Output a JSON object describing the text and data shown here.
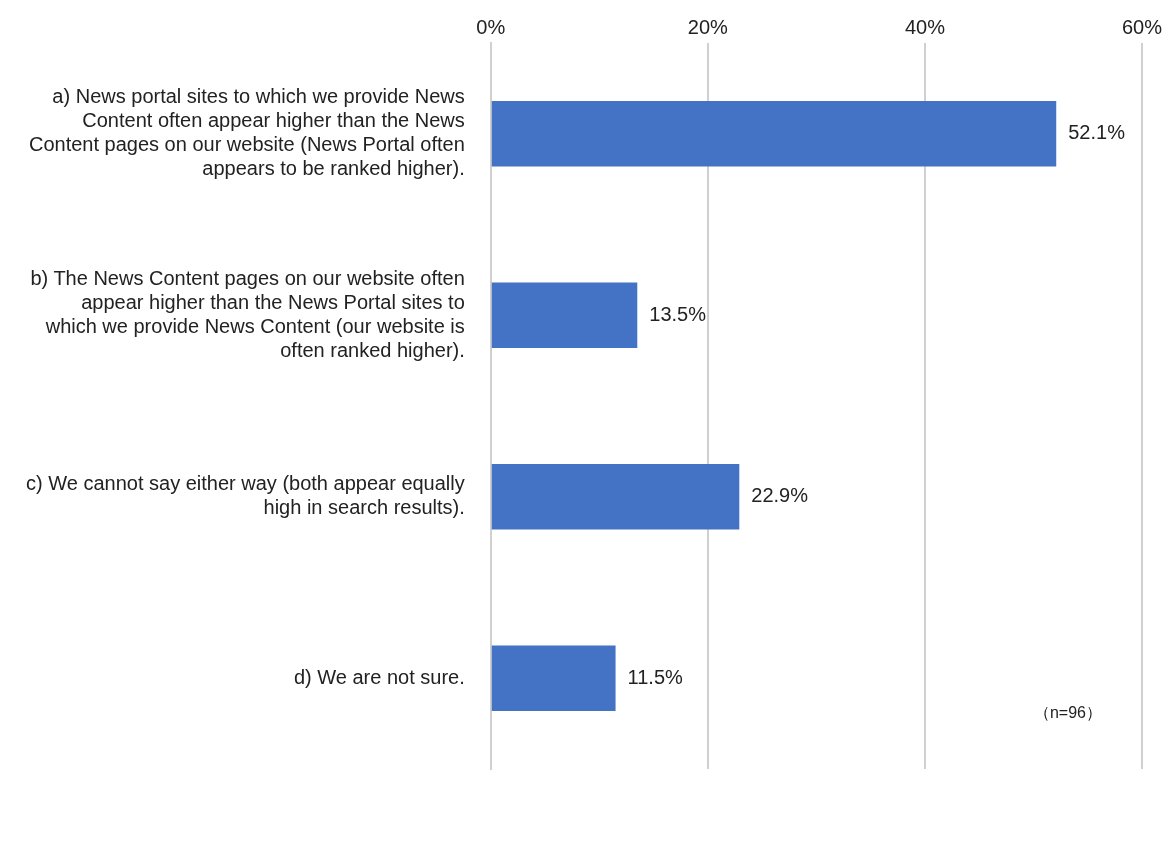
{
  "chart_data": {
    "type": "bar",
    "orientation": "horizontal",
    "categories": [
      "a) News portal sites to which we provide News Content often appear higher than the News Content pages on our website (News Portal often appears to be ranked higher).",
      "b) The News Content pages on our website often appear higher than the News Portal sites to which we provide News Content (our website is often ranked higher).",
      "c) We cannot say either way (both appear equally high in search results).",
      "d) We are not sure."
    ],
    "values": [
      52.1,
      13.5,
      22.9,
      11.5
    ],
    "value_labels": [
      "52.1%",
      "13.5%",
      "22.9%",
      "11.5%"
    ],
    "color": "#4472c4",
    "xlim": [
      0,
      60
    ],
    "xticks": [
      {
        "value": 0,
        "label": "0%"
      },
      {
        "value": 20,
        "label": "20%"
      },
      {
        "value": 40,
        "label": "40%"
      },
      {
        "value": 60,
        "label": "60%"
      }
    ],
    "grid": "x",
    "legend": false,
    "annotations": [
      "（n=96）"
    ]
  }
}
